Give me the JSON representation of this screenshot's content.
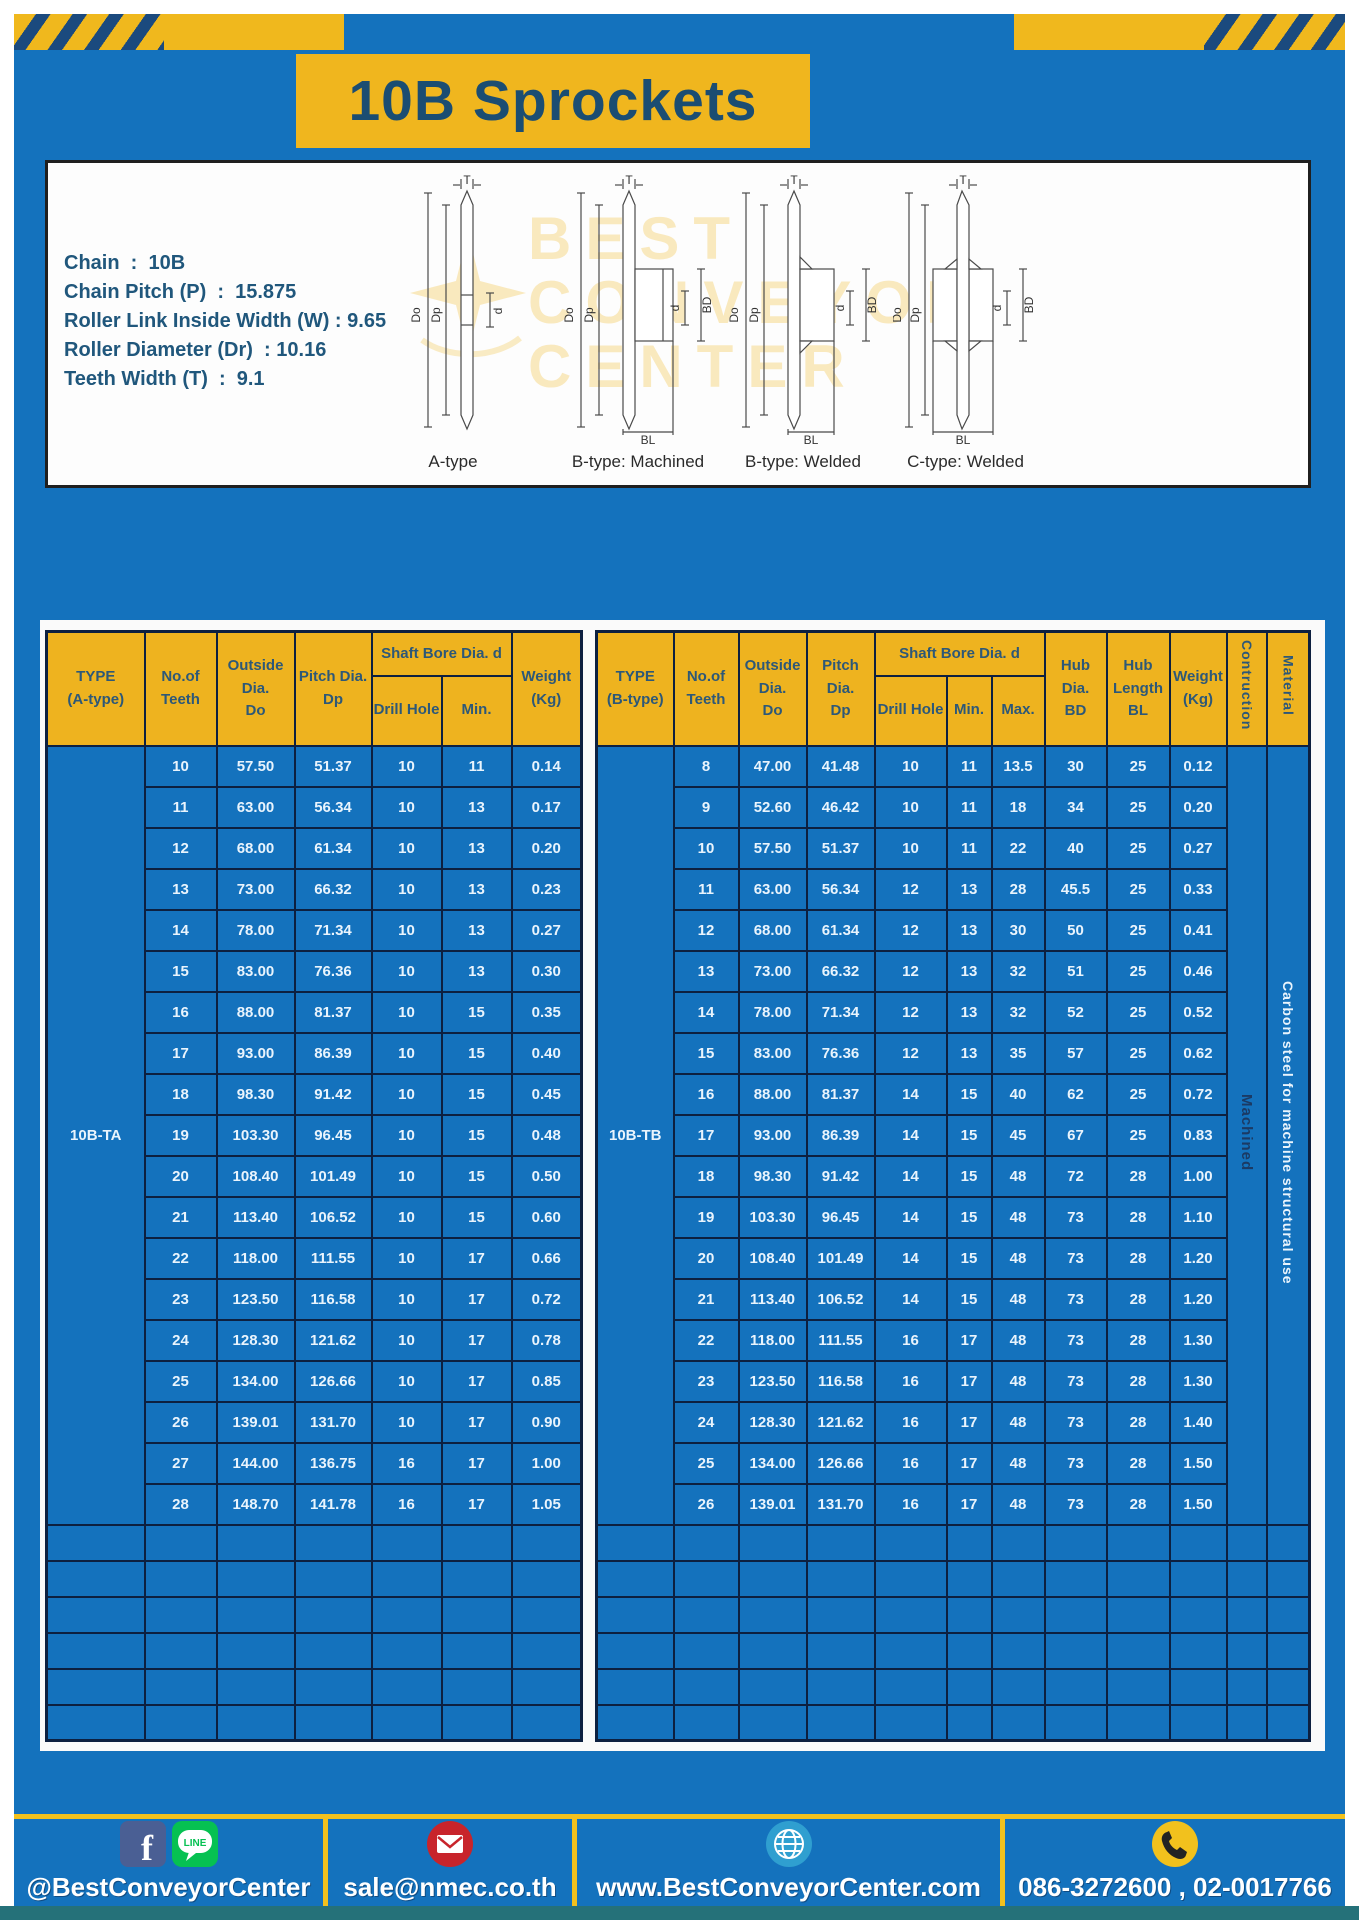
{
  "title": "10B Sprockets",
  "colors": {
    "accent_yellow": "#eeb31f",
    "panel_blue": "#1472bd",
    "border_navy": "#0d2040",
    "teal_strip": "#257179"
  },
  "specs": [
    "Chain  :  10B",
    "Chain Pitch (P)  :  15.875",
    "Roller Link Inside Width (W) : 9.65",
    "Roller Diameter (Dr)  : 10.16",
    "Teeth Width (T)  :  9.1"
  ],
  "diagram": {
    "types": [
      "A-type",
      "B-type: Machined",
      "B-type: Welded",
      "C-type: Welded"
    ],
    "labels": {
      "T": "T",
      "Do": "Do",
      "Dp": "Dp",
      "d": "d",
      "BD": "BD",
      "BL": "BL"
    },
    "watermark": [
      "BEST",
      "CONVEYOR",
      "CENTER"
    ]
  },
  "table_a": {
    "headers": {
      "type": "TYPE\n(A-type)",
      "teeth": "No.of\nTeeth",
      "outside": "Outside\nDia.\nDo",
      "pitch": "Pitch Dia.\nDp",
      "shaft_bore": "Shaft Bore Dia. d",
      "drill": "Drill Hole",
      "min": "Min.",
      "weight": "Weight\n(Kg)"
    },
    "type_label": "10B-TA",
    "rows": [
      [
        "10",
        "57.50",
        "51.37",
        "10",
        "11",
        "0.14"
      ],
      [
        "11",
        "63.00",
        "56.34",
        "10",
        "13",
        "0.17"
      ],
      [
        "12",
        "68.00",
        "61.34",
        "10",
        "13",
        "0.20"
      ],
      [
        "13",
        "73.00",
        "66.32",
        "10",
        "13",
        "0.23"
      ],
      [
        "14",
        "78.00",
        "71.34",
        "10",
        "13",
        "0.27"
      ],
      [
        "15",
        "83.00",
        "76.36",
        "10",
        "13",
        "0.30"
      ],
      [
        "16",
        "88.00",
        "81.37",
        "10",
        "15",
        "0.35"
      ],
      [
        "17",
        "93.00",
        "86.39",
        "10",
        "15",
        "0.40"
      ],
      [
        "18",
        "98.30",
        "91.42",
        "10",
        "15",
        "0.45"
      ],
      [
        "19",
        "103.30",
        "96.45",
        "10",
        "15",
        "0.48"
      ],
      [
        "20",
        "108.40",
        "101.49",
        "10",
        "15",
        "0.50"
      ],
      [
        "21",
        "113.40",
        "106.52",
        "10",
        "15",
        "0.60"
      ],
      [
        "22",
        "118.00",
        "111.55",
        "10",
        "17",
        "0.66"
      ],
      [
        "23",
        "123.50",
        "116.58",
        "10",
        "17",
        "0.72"
      ],
      [
        "24",
        "128.30",
        "121.62",
        "10",
        "17",
        "0.78"
      ],
      [
        "25",
        "134.00",
        "126.66",
        "10",
        "17",
        "0.85"
      ],
      [
        "26",
        "139.01",
        "131.70",
        "10",
        "17",
        "0.90"
      ],
      [
        "27",
        "144.00",
        "136.75",
        "16",
        "17",
        "1.00"
      ],
      [
        "28",
        "148.70",
        "141.78",
        "16",
        "17",
        "1.05"
      ]
    ],
    "empty_rows": 6
  },
  "table_b": {
    "headers": {
      "type": "TYPE\n(B-type)",
      "teeth": "No.of\nTeeth",
      "outside": "Outside\nDia.\nDo",
      "pitch": "Pitch Dia.\nDp",
      "shaft_bore": "Shaft Bore Dia. d",
      "drill": "Drill Hole",
      "min": "Min.",
      "max": "Max.",
      "hub_dia": "Hub Dia.\nBD",
      "hub_len": "Hub\nLength\nBL",
      "weight": "Weight\n(Kg)",
      "construction": "Contruction",
      "material": "Material"
    },
    "type_label": "10B-TB",
    "construction": "Machined",
    "material": "Carbon steel  for machine structural use",
    "rows": [
      [
        "8",
        "47.00",
        "41.48",
        "10",
        "11",
        "13.5",
        "30",
        "25",
        "0.12"
      ],
      [
        "9",
        "52.60",
        "46.42",
        "10",
        "11",
        "18",
        "34",
        "25",
        "0.20"
      ],
      [
        "10",
        "57.50",
        "51.37",
        "10",
        "11",
        "22",
        "40",
        "25",
        "0.27"
      ],
      [
        "11",
        "63.00",
        "56.34",
        "12",
        "13",
        "28",
        "45.5",
        "25",
        "0.33"
      ],
      [
        "12",
        "68.00",
        "61.34",
        "12",
        "13",
        "30",
        "50",
        "25",
        "0.41"
      ],
      [
        "13",
        "73.00",
        "66.32",
        "12",
        "13",
        "32",
        "51",
        "25",
        "0.46"
      ],
      [
        "14",
        "78.00",
        "71.34",
        "12",
        "13",
        "32",
        "52",
        "25",
        "0.52"
      ],
      [
        "15",
        "83.00",
        "76.36",
        "12",
        "13",
        "35",
        "57",
        "25",
        "0.62"
      ],
      [
        "16",
        "88.00",
        "81.37",
        "14",
        "15",
        "40",
        "62",
        "25",
        "0.72"
      ],
      [
        "17",
        "93.00",
        "86.39",
        "14",
        "15",
        "45",
        "67",
        "25",
        "0.83"
      ],
      [
        "18",
        "98.30",
        "91.42",
        "14",
        "15",
        "48",
        "72",
        "28",
        "1.00"
      ],
      [
        "19",
        "103.30",
        "96.45",
        "14",
        "15",
        "48",
        "73",
        "28",
        "1.10"
      ],
      [
        "20",
        "108.40",
        "101.49",
        "14",
        "15",
        "48",
        "73",
        "28",
        "1.20"
      ],
      [
        "21",
        "113.40",
        "106.52",
        "14",
        "15",
        "48",
        "73",
        "28",
        "1.20"
      ],
      [
        "22",
        "118.00",
        "111.55",
        "16",
        "17",
        "48",
        "73",
        "28",
        "1.30"
      ],
      [
        "23",
        "123.50",
        "116.58",
        "16",
        "17",
        "48",
        "73",
        "28",
        "1.30"
      ],
      [
        "24",
        "128.30",
        "121.62",
        "16",
        "17",
        "48",
        "73",
        "28",
        "1.40"
      ],
      [
        "25",
        "134.00",
        "126.66",
        "16",
        "17",
        "48",
        "73",
        "28",
        "1.50"
      ],
      [
        "26",
        "139.01",
        "131.70",
        "16",
        "17",
        "48",
        "73",
        "28",
        "1.50"
      ]
    ],
    "empty_rows": 6
  },
  "footer": {
    "items": [
      {
        "icons": [
          "facebook-icon",
          "line-icon"
        ],
        "text": "@BestConveyorCenter"
      },
      {
        "icons": [
          "email-icon"
        ],
        "text": "sale@nmec.co.th"
      },
      {
        "icons": [
          "globe-icon"
        ],
        "text": "www.BestConveyorCenter.com"
      },
      {
        "icons": [
          "phone-icon"
        ],
        "text": "086-3272600 , 02-0017766"
      }
    ]
  }
}
